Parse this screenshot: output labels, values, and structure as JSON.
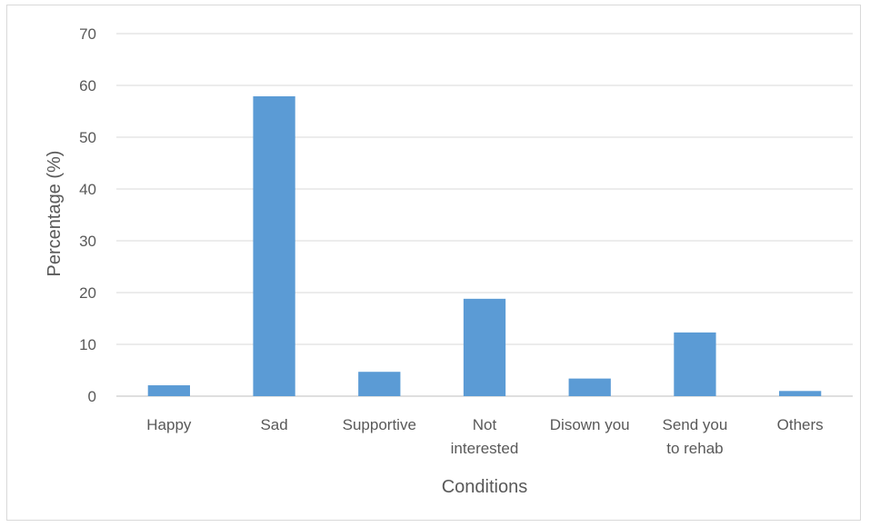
{
  "chart_data": {
    "type": "bar",
    "title": "",
    "xlabel": "Conditions",
    "ylabel": "Percentage (%)",
    "ylim": [
      0,
      70
    ],
    "yticks": [
      0,
      10,
      20,
      30,
      40,
      50,
      60,
      70
    ],
    "grid": true,
    "legend": "none",
    "categories": [
      [
        "Happy"
      ],
      [
        "Sad"
      ],
      [
        "Supportive"
      ],
      [
        "Not",
        "interested"
      ],
      [
        "Disown you"
      ],
      [
        "Send you",
        "to rehab"
      ],
      [
        "Others"
      ]
    ],
    "values": [
      2.1,
      57.9,
      4.7,
      18.8,
      3.4,
      12.3,
      1.0
    ],
    "colors": {
      "bar": "#5b9bd5",
      "grid": "#d9d9d9",
      "axis": "#bfbfbf",
      "text": "#595959"
    }
  }
}
